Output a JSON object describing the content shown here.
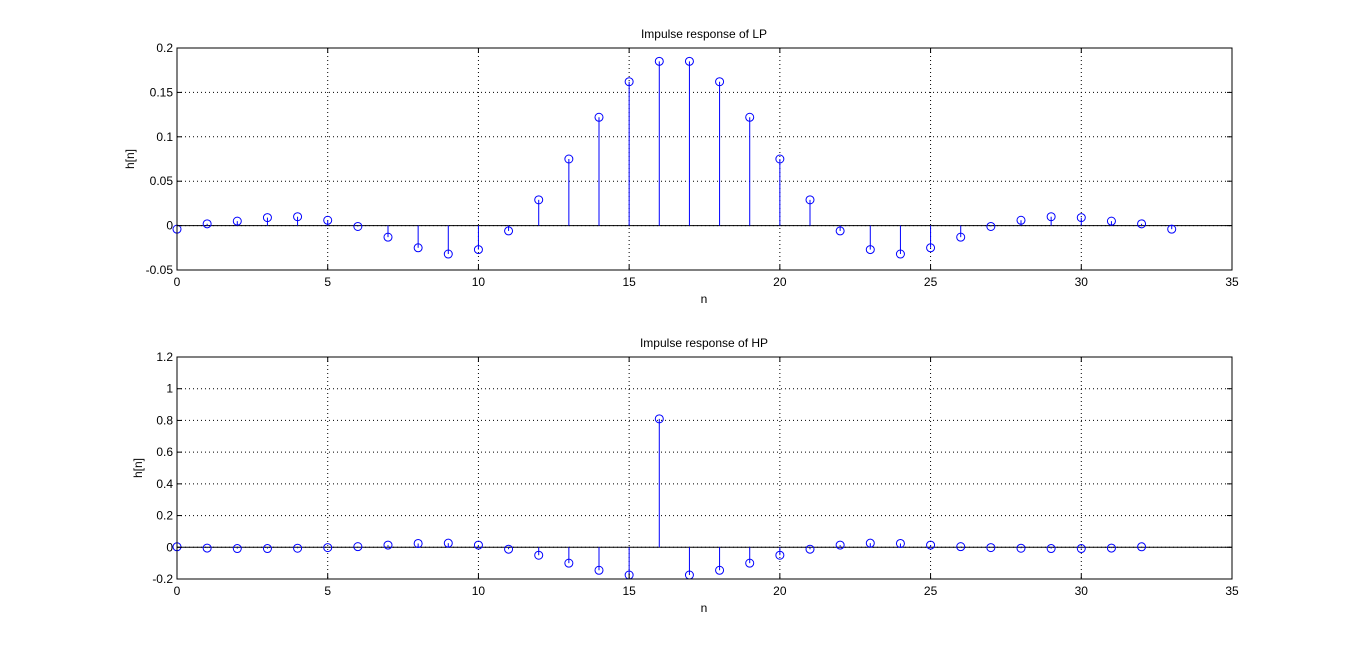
{
  "chart_data": [
    {
      "type": "stem",
      "title": "Impulse response of LP",
      "xlabel": "n",
      "ylabel": "h[n]",
      "xlim": [
        0,
        35
      ],
      "ylim": [
        -0.05,
        0.2
      ],
      "xticks": [
        "0",
        "5",
        "10",
        "15",
        "20",
        "25",
        "30",
        "35"
      ],
      "yticks": [
        "-0.05",
        "0",
        "0.05",
        "0.1",
        "0.15",
        "0.2"
      ],
      "grid": true,
      "color": "#0000ff",
      "x": [
        0,
        1,
        2,
        3,
        4,
        5,
        6,
        7,
        8,
        9,
        10,
        11,
        12,
        13,
        14,
        15,
        16,
        17,
        18,
        19,
        20,
        21,
        22,
        23,
        24,
        25,
        26,
        27,
        28,
        29,
        30,
        31,
        32,
        33
      ],
      "values": [
        -0.004,
        0.002,
        0.005,
        0.009,
        0.01,
        0.006,
        -0.001,
        -0.013,
        -0.025,
        -0.032,
        -0.027,
        -0.006,
        0.029,
        0.075,
        0.122,
        0.162,
        0.185,
        0.185,
        0.162,
        0.122,
        0.075,
        0.029,
        -0.006,
        -0.027,
        -0.032,
        -0.025,
        -0.013,
        -0.001,
        0.006,
        0.01,
        0.009,
        0.005,
        0.002,
        -0.004
      ]
    },
    {
      "type": "stem",
      "title": "Impulse response of HP",
      "xlabel": "n",
      "ylabel": "h[n]",
      "xlim": [
        0,
        35
      ],
      "ylim": [
        -0.2,
        1.2
      ],
      "xticks": [
        "0",
        "5",
        "10",
        "15",
        "20",
        "25",
        "30",
        "35"
      ],
      "yticks": [
        "-0.2",
        "0",
        "0.2",
        "0.4",
        "0.6",
        "0.8",
        "1",
        "1.2"
      ],
      "grid": true,
      "color": "#0000ff",
      "x": [
        0,
        1,
        2,
        3,
        4,
        5,
        6,
        7,
        8,
        9,
        10,
        11,
        12,
        13,
        14,
        15,
        16,
        17,
        18,
        19,
        20,
        21,
        22,
        23,
        24,
        25,
        26,
        27,
        28,
        29,
        30,
        31,
        32
      ],
      "values": [
        0.003,
        -0.005,
        -0.008,
        -0.008,
        -0.006,
        -0.002,
        0.004,
        0.014,
        0.024,
        0.026,
        0.014,
        -0.012,
        -0.05,
        -0.1,
        -0.145,
        -0.175,
        0.81,
        -0.175,
        -0.145,
        -0.1,
        -0.05,
        -0.012,
        0.014,
        0.026,
        0.024,
        0.014,
        0.004,
        -0.002,
        -0.006,
        -0.008,
        -0.008,
        -0.005,
        0.003
      ]
    }
  ]
}
